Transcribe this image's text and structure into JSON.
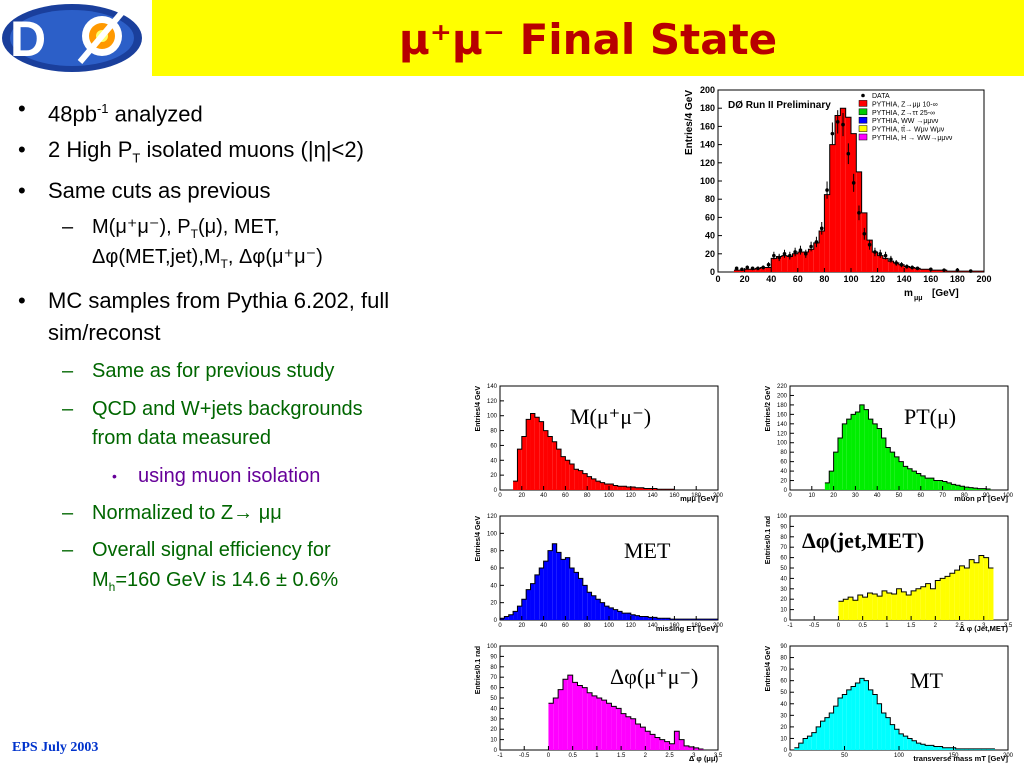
{
  "slide": {
    "title": "μ⁺μ⁻ Final State",
    "footer": "EPS July 2003",
    "logo_text": "DØ"
  },
  "bullets": {
    "b1_main": "48pb",
    "b1_sup": "-1",
    "b1_rest": " analyzed",
    "b2_a": "2 High P",
    "b2_sub": "T",
    "b2_b": " isolated muons (|η|<2)",
    "b3": "Same cuts as previous",
    "b3_s1_line1": "M(μ⁺μ⁻), P",
    "b3_s1_sub": "T",
    "b3_s1_line1b": "(μ), MET,",
    "b3_s1_line2": "Δφ(MET,jet),M",
    "b3_s1_sub2": "T",
    "b3_s1_line2b": ", Δφ(μ⁺μ⁻)",
    "b4_line1": "MC samples from Pythia 6.202, full",
    "b4_line2": "sim/reconst",
    "b4_s1": "Same as for previous study",
    "b4_s2_line1": "QCD and W+jets backgrounds",
    "b4_s2_line2": "from data measured",
    "b4_s2_sub": "using muon isolation",
    "b4_s3": "Normalized to Z→ μμ",
    "b4_s4_line1": "Overall signal efficiency for",
    "b4_s4_line2a": "M",
    "b4_s4_sub": "h",
    "b4_s4_line2b": "=160 GeV is 14.6 ± 0.6%"
  },
  "chart_data": [
    {
      "type": "bar",
      "id": "main-mass",
      "title": "DØ Run II Preliminary",
      "ylabel": "Entries/4 GeV",
      "xlabel_main": "m",
      "xlabel_sub": "μμ",
      "xlabel_unit": "[GeV]",
      "xlim": [
        0,
        200
      ],
      "ylim": [
        0,
        200
      ],
      "xticks": [
        0,
        20,
        40,
        60,
        80,
        100,
        120,
        140,
        160,
        180,
        200
      ],
      "yticks": [
        0,
        20,
        40,
        60,
        80,
        100,
        120,
        140,
        160,
        180,
        200
      ],
      "bin_width": 4,
      "bin_start": 12,
      "values": [
        2,
        2,
        3,
        3,
        4,
        5,
        5,
        15,
        17,
        18,
        17,
        20,
        22,
        22,
        25,
        32,
        45,
        85,
        140,
        172,
        180,
        170,
        152,
        110,
        65,
        35,
        22,
        18,
        15,
        12,
        10,
        8,
        6,
        5,
        4,
        3,
        3,
        2,
        2,
        2,
        1,
        1,
        1,
        1,
        1,
        1,
        1
      ],
      "data_points": [
        [
          14,
          4
        ],
        [
          18,
          3
        ],
        [
          22,
          5
        ],
        [
          26,
          4
        ],
        [
          30,
          4
        ],
        [
          34,
          5
        ],
        [
          38,
          8
        ],
        [
          42,
          18
        ],
        [
          46,
          16
        ],
        [
          50,
          20
        ],
        [
          54,
          18
        ],
        [
          58,
          22
        ],
        [
          62,
          24
        ],
        [
          66,
          20
        ],
        [
          70,
          28
        ],
        [
          74,
          33
        ],
        [
          78,
          48
        ],
        [
          82,
          90
        ],
        [
          86,
          152
        ],
        [
          90,
          165
        ],
        [
          94,
          162
        ],
        [
          98,
          130
        ],
        [
          102,
          98
        ],
        [
          106,
          65
        ],
        [
          110,
          42
        ],
        [
          114,
          30
        ],
        [
          118,
          22
        ],
        [
          122,
          20
        ],
        [
          126,
          18
        ],
        [
          130,
          14
        ],
        [
          134,
          10
        ],
        [
          138,
          8
        ],
        [
          142,
          6
        ],
        [
          146,
          5
        ],
        [
          150,
          4
        ],
        [
          160,
          3
        ],
        [
          170,
          2
        ],
        [
          180,
          2
        ],
        [
          190,
          1
        ]
      ],
      "legend": [
        "DATA",
        "PYTHIA, Z→μμ 10-∞",
        "PYTHIA, Z→ττ 25-∞",
        "PYTHIA, WW →μμνν",
        "PYTHIA, tt̄→ Wμν Wμν",
        "PYTHIA, H → WW→μμνν"
      ],
      "legend_colors": [
        "#000000",
        "#ff0000",
        "#00cc00",
        "#0000ff",
        "#ffff00",
        "#ff00ff"
      ],
      "fill": "#ff0000"
    },
    {
      "type": "bar",
      "id": "mass-mumu",
      "label": "M(μ⁺μ⁻)",
      "ylabel": "Entries/4 GeV",
      "xlabel": "mμμ [GeV]",
      "xlim": [
        0,
        200
      ],
      "ylim": [
        0,
        140
      ],
      "xticks": [
        0,
        20,
        40,
        60,
        80,
        100,
        120,
        140,
        160,
        180,
        200
      ],
      "yticks": [
        0,
        20,
        40,
        60,
        80,
        100,
        120,
        140
      ],
      "bin_width": 4,
      "bin_start": 12,
      "values": [
        12,
        55,
        72,
        95,
        103,
        98,
        92,
        80,
        72,
        65,
        55,
        45,
        40,
        35,
        28,
        26,
        22,
        18,
        15,
        12,
        10,
        8,
        8,
        6,
        5,
        5,
        4,
        4,
        3,
        3,
        2,
        2,
        2,
        1,
        1,
        1,
        1
      ],
      "fill": "#ff0000"
    },
    {
      "type": "bar",
      "id": "pt-mu",
      "label": "PT(μ)",
      "ylabel": "Entries/2 GeV",
      "xlabel": "muon pT [GeV]",
      "xlim": [
        0,
        100
      ],
      "ylim": [
        0,
        220
      ],
      "xticks": [
        0,
        10,
        20,
        30,
        40,
        50,
        60,
        70,
        80,
        90,
        100
      ],
      "yticks": [
        0,
        20,
        40,
        60,
        80,
        100,
        120,
        140,
        160,
        180,
        200,
        220
      ],
      "bin_width": 2,
      "bin_start": 16,
      "values": [
        15,
        40,
        80,
        110,
        140,
        150,
        160,
        165,
        180,
        170,
        150,
        140,
        130,
        110,
        90,
        80,
        70,
        60,
        50,
        45,
        40,
        35,
        30,
        25,
        25,
        20,
        20,
        18,
        15,
        12,
        10,
        8,
        6,
        5,
        4,
        3,
        3,
        2
      ],
      "fill": "#00ee00"
    },
    {
      "type": "bar",
      "id": "met",
      "label": "MET",
      "ylabel": "Entries/4 GeV",
      "xlabel": "missing ET [GeV]",
      "xlim": [
        0,
        200
      ],
      "ylim": [
        0,
        120
      ],
      "xticks": [
        0,
        20,
        40,
        60,
        80,
        100,
        120,
        140,
        160,
        180,
        200
      ],
      "yticks": [
        0,
        20,
        40,
        60,
        80,
        100,
        120
      ],
      "bin_width": 4,
      "bin_start": 0,
      "values": [
        2,
        4,
        6,
        10,
        16,
        24,
        35,
        42,
        52,
        60,
        68,
        80,
        88,
        78,
        70,
        72,
        60,
        55,
        48,
        40,
        32,
        28,
        24,
        20,
        16,
        14,
        12,
        10,
        8,
        8,
        6,
        5,
        4,
        4,
        3,
        3,
        2,
        2,
        2,
        1,
        1,
        1,
        1,
        1,
        1,
        1,
        1,
        1,
        1,
        1
      ],
      "fill": "#0000ff"
    },
    {
      "type": "bar",
      "id": "dphi-jet-met",
      "label": "Δφ(jet,MET)",
      "ylabel": "Entries/0.1 rad",
      "xlabel": "Δ φ (Jet,MET)",
      "xlim": [
        -1,
        3.5
      ],
      "ylim": [
        0,
        100
      ],
      "xticks": [
        -1,
        -0.5,
        0,
        0.5,
        1,
        1.5,
        2,
        2.5,
        3,
        3.5
      ],
      "yticks": [
        0,
        10,
        20,
        30,
        40,
        50,
        60,
        70,
        80,
        90,
        100
      ],
      "bin_width": 0.1,
      "bin_start": 0,
      "values": [
        18,
        20,
        22,
        19,
        24,
        22,
        26,
        25,
        23,
        28,
        26,
        25,
        30,
        27,
        24,
        28,
        30,
        32,
        35,
        30,
        38,
        40,
        42,
        45,
        48,
        52,
        50,
        58,
        55,
        62,
        60,
        50
      ],
      "fill": "#ffff00"
    },
    {
      "type": "bar",
      "id": "dphi-mumu",
      "label": "Δφ(μ⁺μ⁻)",
      "ylabel": "Entries/0.1 rad",
      "xlabel": "Δ φ (μμ)",
      "xlim": [
        -1,
        3.5
      ],
      "ylim": [
        0,
        100
      ],
      "xticks": [
        -1,
        -0.5,
        0,
        0.5,
        1,
        1.5,
        2,
        2.5,
        3,
        3.5
      ],
      "yticks": [
        0,
        10,
        20,
        30,
        40,
        50,
        60,
        70,
        80,
        90,
        100
      ],
      "bin_width": 0.1,
      "bin_start": 0,
      "values": [
        45,
        50,
        58,
        68,
        72,
        65,
        62,
        60,
        55,
        52,
        50,
        48,
        45,
        42,
        40,
        35,
        32,
        30,
        25,
        22,
        18,
        15,
        12,
        10,
        8,
        6,
        18,
        10,
        4,
        3,
        2,
        1
      ],
      "fill": "#ff00ff"
    },
    {
      "type": "bar",
      "id": "mt",
      "label": "MT",
      "ylabel": "Entries/4 GeV",
      "xlabel": "transverse mass mT [GeV]",
      "xlim": [
        0,
        200
      ],
      "ylim": [
        0,
        90
      ],
      "xticks": [
        0,
        50,
        100,
        150,
        200
      ],
      "yticks": [
        0,
        10,
        20,
        30,
        40,
        50,
        60,
        70,
        80,
        90
      ],
      "bin_width": 4,
      "bin_start": 4,
      "values": [
        2,
        6,
        10,
        12,
        15,
        20,
        25,
        28,
        32,
        38,
        45,
        48,
        52,
        55,
        58,
        62,
        60,
        52,
        48,
        40,
        32,
        28,
        22,
        18,
        14,
        12,
        10,
        8,
        6,
        5,
        4,
        4,
        3,
        3,
        2,
        2,
        2,
        1,
        1,
        1,
        1,
        1,
        1,
        1,
        1,
        1
      ],
      "fill": "#00ffff"
    }
  ]
}
